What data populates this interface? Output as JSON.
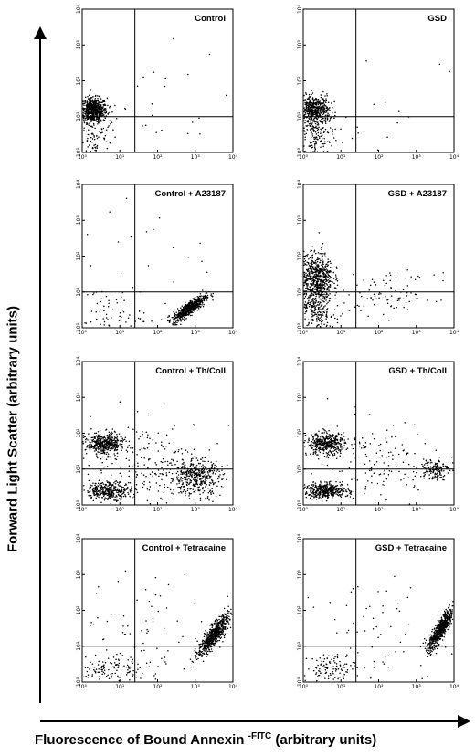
{
  "figure": {
    "y_axis_label": "Forward Light Scatter (arbitrary units)",
    "x_axis_label_main": "Fluorescence of Bound Annexin ",
    "x_axis_label_sup": "-FITC",
    "x_axis_label_units": " (arbitrary units)"
  },
  "colors": {
    "ink": "#000000",
    "background": "#ffffff"
  },
  "chart_data": [
    {
      "type": "scatter",
      "title": "Control",
      "xscale": "log",
      "yscale": "log",
      "xlim": [
        1,
        10000
      ],
      "ylim": [
        1,
        10000
      ],
      "xticks": [
        "10⁰",
        "10¹",
        "10²",
        "10³",
        "10⁴"
      ],
      "yticks": [
        "10⁰",
        "10¹",
        "10²",
        "10³",
        "10⁴"
      ],
      "gate_x": 25,
      "gate_y": 10,
      "populations": [
        {
          "cx": 2.0,
          "cy": 15,
          "sx": 0.18,
          "sy": 0.17,
          "n": 650
        },
        {
          "cx": 1.9,
          "cy": 2.5,
          "sx": 0.25,
          "sy": 0.3,
          "n": 90
        },
        {
          "cx": 60,
          "cy": 20,
          "sx": 1.0,
          "sy": 0.8,
          "n": 25
        }
      ]
    },
    {
      "type": "scatter",
      "title": "GSD",
      "xscale": "log",
      "yscale": "log",
      "xlim": [
        1,
        10000
      ],
      "ylim": [
        1,
        10000
      ],
      "xticks": [
        "10⁰",
        "10¹",
        "10²",
        "10³",
        "10⁴"
      ],
      "yticks": [
        "10⁰",
        "10¹",
        "10²",
        "10³",
        "10⁴"
      ],
      "gate_x": 25,
      "gate_y": 10,
      "populations": [
        {
          "cx": 2.0,
          "cy": 15,
          "sx": 0.2,
          "sy": 0.2,
          "n": 520
        },
        {
          "cx": 2.0,
          "cy": 2.5,
          "sx": 0.25,
          "sy": 0.3,
          "n": 150
        },
        {
          "cx": 60,
          "cy": 20,
          "sx": 1.0,
          "sy": 0.8,
          "n": 20
        }
      ]
    },
    {
      "type": "scatter",
      "title": "Control + A23187",
      "xscale": "log",
      "yscale": "log",
      "xlim": [
        1,
        10000
      ],
      "ylim": [
        1,
        10000
      ],
      "xticks": [
        "10⁰",
        "10¹",
        "10²",
        "10³",
        "10⁴"
      ],
      "yticks": [
        "10⁰",
        "10¹",
        "10²",
        "10³",
        "10⁴"
      ],
      "gate_x": 25,
      "gate_y": 10,
      "populations": [
        {
          "cx": 700,
          "cy": 3.5,
          "sx": 0.22,
          "sy": 0.18,
          "corr": 0.85,
          "n": 600
        },
        {
          "cx": 4,
          "cy": 2.5,
          "sx": 0.5,
          "sy": 0.35,
          "n": 70
        },
        {
          "cx": 60,
          "cy": 60,
          "sx": 1.0,
          "sy": 0.8,
          "n": 25
        }
      ]
    },
    {
      "type": "scatter",
      "title": "GSD + A23187",
      "xscale": "log",
      "yscale": "log",
      "xlim": [
        1,
        10000
      ],
      "ylim": [
        1,
        10000
      ],
      "xticks": [
        "10⁰",
        "10¹",
        "10²",
        "10³",
        "10⁴"
      ],
      "yticks": [
        "10⁰",
        "10¹",
        "10²",
        "10³",
        "10⁴"
      ],
      "gate_x": 25,
      "gate_y": 10,
      "populations": [
        {
          "cx": 2.2,
          "cy": 25,
          "sx": 0.22,
          "sy": 0.35,
          "n": 650
        },
        {
          "cx": 2.2,
          "cy": 3,
          "sx": 0.25,
          "sy": 0.35,
          "n": 250
        },
        {
          "cx": 200,
          "cy": 8,
          "sx": 0.6,
          "sy": 0.3,
          "n": 90
        }
      ]
    },
    {
      "type": "scatter",
      "title": "Control + Th/Coll",
      "xscale": "log",
      "yscale": "log",
      "xlim": [
        1,
        10000
      ],
      "ylim": [
        1,
        10000
      ],
      "xticks": [
        "10⁰",
        "10¹",
        "10²",
        "10³",
        "10⁴"
      ],
      "yticks": [
        "10⁰",
        "10¹",
        "10²",
        "10³",
        "10⁴"
      ],
      "gate_x": 25,
      "gate_y": 10,
      "populations": [
        {
          "cx": 4,
          "cy": 50,
          "sx": 0.25,
          "sy": 0.15,
          "n": 450
        },
        {
          "cx": 5,
          "cy": 2.5,
          "sx": 0.3,
          "sy": 0.12,
          "n": 330
        },
        {
          "cx": 1000,
          "cy": 6,
          "sx": 0.35,
          "sy": 0.25,
          "n": 420
        },
        {
          "cx": 80,
          "cy": 15,
          "sx": 0.8,
          "sy": 0.6,
          "n": 180
        }
      ]
    },
    {
      "type": "scatter",
      "title": "GSD + Th/Coll",
      "xscale": "log",
      "yscale": "log",
      "xlim": [
        1,
        10000
      ],
      "ylim": [
        1,
        10000
      ],
      "xticks": [
        "10⁰",
        "10¹",
        "10²",
        "10³",
        "10⁴"
      ],
      "yticks": [
        "10⁰",
        "10¹",
        "10²",
        "10³",
        "10⁴"
      ],
      "gate_x": 25,
      "gate_y": 10,
      "populations": [
        {
          "cx": 4,
          "cy": 50,
          "sx": 0.25,
          "sy": 0.15,
          "n": 420
        },
        {
          "cx": 4,
          "cy": 2.5,
          "sx": 0.3,
          "sy": 0.1,
          "n": 420
        },
        {
          "cx": 3000,
          "cy": 10,
          "sx": 0.2,
          "sy": 0.15,
          "n": 140
        },
        {
          "cx": 80,
          "cy": 15,
          "sx": 0.8,
          "sy": 0.6,
          "n": 150
        }
      ]
    },
    {
      "type": "scatter",
      "title": "Control + Tetracaine",
      "xscale": "log",
      "yscale": "log",
      "xlim": [
        1,
        10000
      ],
      "ylim": [
        1,
        10000
      ],
      "xticks": [
        "10⁰",
        "10¹",
        "10²",
        "10³",
        "10⁴"
      ],
      "yticks": [
        "10⁰",
        "10¹",
        "10²",
        "10³",
        "10⁴"
      ],
      "gate_x": 25,
      "gate_y": 10,
      "populations": [
        {
          "cx": 3000,
          "cy": 20,
          "sx": 0.2,
          "sy": 0.28,
          "corr": 0.85,
          "n": 650
        },
        {
          "cx": 5,
          "cy": 2.5,
          "sx": 0.45,
          "sy": 0.2,
          "n": 120
        },
        {
          "cx": 80,
          "cy": 20,
          "sx": 1.0,
          "sy": 0.8,
          "n": 80
        }
      ]
    },
    {
      "type": "scatter",
      "title": "GSD + Tetracaine",
      "xscale": "log",
      "yscale": "log",
      "xlim": [
        1,
        10000
      ],
      "ylim": [
        1,
        10000
      ],
      "xticks": [
        "10⁰",
        "10¹",
        "10²",
        "10³",
        "10⁴"
      ],
      "yticks": [
        "10⁰",
        "10¹",
        "10²",
        "10³",
        "10⁴"
      ],
      "gate_x": 25,
      "gate_y": 10,
      "populations": [
        {
          "cx": 4500,
          "cy": 30,
          "sx": 0.16,
          "sy": 0.28,
          "corr": 0.85,
          "n": 650
        },
        {
          "cx": 5,
          "cy": 2.5,
          "sx": 0.35,
          "sy": 0.2,
          "n": 110
        },
        {
          "cx": 80,
          "cy": 20,
          "sx": 1.0,
          "sy": 0.8,
          "n": 70
        }
      ]
    }
  ]
}
